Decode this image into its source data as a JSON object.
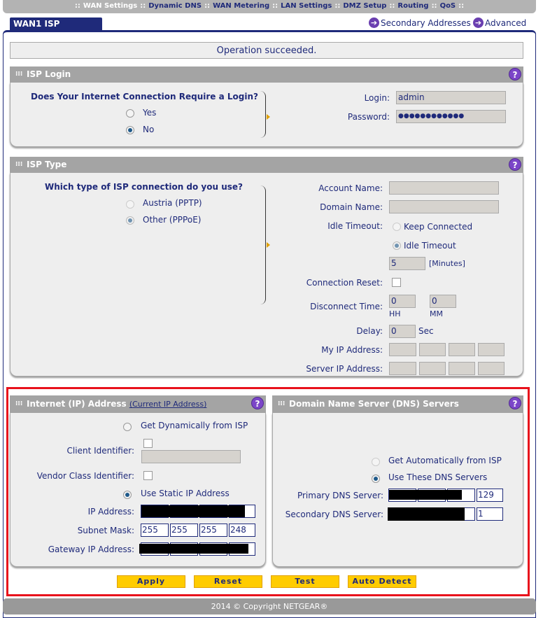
{
  "nav": {
    "items": [
      "WAN Settings",
      "Dynamic DNS",
      "WAN Metering",
      "LAN Settings",
      "DMZ Setup",
      "Routing",
      "QoS"
    ],
    "active": "WAN Settings"
  },
  "title": "WAN1 ISP Settings",
  "links": {
    "secondary": "Secondary Addresses",
    "advanced": "Advanced"
  },
  "message": "Operation succeeded.",
  "isp_login": {
    "header": "ISP Login",
    "question": "Does Your Internet Connection Require a Login?",
    "yes": "Yes",
    "no": "No",
    "selected": "No",
    "login_label": "Login:",
    "login_value": "admin",
    "password_label": "Password:",
    "password_value": "●●●●●●●●●●●●"
  },
  "isp_type": {
    "header": "ISP Type",
    "question": "Which type of ISP connection do you use?",
    "austria": "Austria (PPTP)",
    "other": "Other (PPPoE)",
    "selected": "Other (PPPoE)",
    "account_label": "Account Name:",
    "domain_label": "Domain Name:",
    "idle_label": "Idle Timeout:",
    "keep_connected": "Keep Connected",
    "idle_timeout": "Idle Timeout",
    "idle_value": "5",
    "minutes": "[Minutes]",
    "conn_reset_label": "Connection Reset:",
    "disconnect_label": "Disconnect Time:",
    "hh_value": "0",
    "mm_value": "0",
    "hh": "HH",
    "mm": "MM",
    "delay_label": "Delay:",
    "delay_value": "0",
    "sec": "Sec",
    "my_ip_label": "My IP Address:",
    "server_ip_label": "Server IP Address:"
  },
  "internet": {
    "header": "Internet (IP) Address",
    "current_link": "(Current IP Address)",
    "dynamic": "Get Dynamically from ISP",
    "client_label": "Client Identifier:",
    "vendor_label": "Vendor Class Identifier:",
    "static": "Use Static IP Address",
    "selected": "Use Static IP Address",
    "ip_label": "IP Address:",
    "subnet_label": "Subnet Mask:",
    "subnet": [
      "255",
      "255",
      "255",
      "248"
    ],
    "gateway_label": "Gateway IP Address:"
  },
  "dns": {
    "header": "Domain Name Server (DNS) Servers",
    "auto": "Get Automatically from ISP",
    "use": "Use These DNS Servers",
    "selected": "Use These DNS Servers",
    "primary_label": "Primary DNS Server:",
    "primary_last": "129",
    "secondary_label": "Secondary DNS Server:",
    "secondary_last": "1"
  },
  "buttons": {
    "apply": "Apply",
    "reset": "Reset",
    "test": "Test",
    "auto_detect": "Auto Detect"
  },
  "footer": "2014 © Copyright NETGEAR®",
  "colors": {
    "navy": "#1f2a7a",
    "button": "#ffcc00",
    "highlight": "#e8121c"
  }
}
